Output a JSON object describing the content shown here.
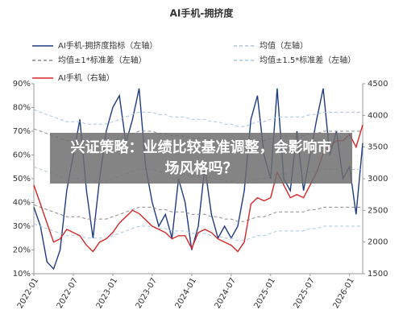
{
  "chart_data": {
    "type": "line",
    "title": "AI手机-拥挤度",
    "x": [
      "2022-01",
      "2022-02",
      "2022-03",
      "2022-04",
      "2022-05",
      "2022-06",
      "2022-07",
      "2022-08",
      "2022-09",
      "2022-10",
      "2022-11",
      "2022-12",
      "2023-01",
      "2023-02",
      "2023-03",
      "2023-04",
      "2023-05",
      "2023-06",
      "2023-07",
      "2023-08",
      "2023-09",
      "2023-10",
      "2023-11",
      "2023-12",
      "2024-01",
      "2024-02",
      "2024-03",
      "2024-04",
      "2024-05",
      "2024-06",
      "2024-07",
      "2024-08",
      "2024-09",
      "2024-10",
      "2024-11",
      "2024-12",
      "2025-01",
      "2025-02",
      "2025-03",
      "2025-04",
      "2025-05",
      "2025-06",
      "2025-07",
      "2025-08",
      "2025-09",
      "2025-10",
      "2025-11",
      "2025-12",
      "2026-01",
      "2026-02",
      "2026-03"
    ],
    "xticks": [
      "2022-01",
      "2022-07",
      "2023-01",
      "2023-07",
      "2024-01",
      "2024-07",
      "2025-01",
      "2025-07",
      "2026-01"
    ],
    "ylim": [
      10,
      90
    ],
    "yticks": [
      {
        "value": 10,
        "label": "10%"
      },
      {
        "value": 20,
        "label": "20%"
      },
      {
        "value": 30,
        "label": "30%"
      },
      {
        "value": 40,
        "label": "40%"
      },
      {
        "value": 50,
        "label": "50%"
      },
      {
        "value": 60,
        "label": "60%"
      },
      {
        "value": 70,
        "label": "70%"
      },
      {
        "value": 80,
        "label": "80%"
      },
      {
        "value": 90,
        "label": "90%"
      }
    ],
    "y2lim": [
      1500,
      4500
    ],
    "y2ticks": [
      1500,
      2000,
      2500,
      3000,
      3500,
      4000,
      4500
    ],
    "series": [
      {
        "name": "AI手机-拥挤度指标（左轴）",
        "color": "#1f3b80",
        "dashed": false,
        "values": [
          38,
          30,
          15,
          12,
          20,
          45,
          60,
          75,
          45,
          25,
          50,
          70,
          80,
          85,
          65,
          75,
          88,
          55,
          40,
          30,
          35,
          25,
          50,
          40,
          20,
          30,
          55,
          35,
          25,
          30,
          25,
          30,
          45,
          75,
          85,
          60,
          50,
          88,
          50,
          45,
          70,
          45,
          60,
          75,
          88,
          60,
          70,
          50,
          55,
          35,
          65
        ]
      },
      {
        "name": "均值（左轴）",
        "color": "#b3c0d8",
        "dashed": true,
        "values": [
          55,
          54,
          53,
          52,
          51,
          50,
          50,
          50,
          49,
          49,
          49,
          49,
          50,
          51,
          52,
          53,
          54,
          54,
          54,
          53,
          53,
          52,
          52,
          52,
          51,
          51,
          51,
          50,
          50,
          49,
          49,
          48,
          48,
          49,
          50,
          50,
          51,
          52,
          52,
          52,
          52,
          52,
          53,
          53,
          54,
          54,
          54,
          54,
          54,
          54,
          54
        ]
      },
      {
        "name": "均值±1*标准差（左轴）",
        "color": "#8c8c8c",
        "dashed": true,
        "values": [
          71,
          70,
          69,
          68,
          67,
          66,
          66,
          66,
          65,
          65,
          65,
          65,
          66,
          67,
          68,
          69,
          70,
          70,
          70,
          69,
          69,
          68,
          68,
          68,
          67,
          67,
          67,
          66,
          66,
          65,
          65,
          64,
          64,
          65,
          66,
          66,
          67,
          68,
          68,
          68,
          68,
          68,
          69,
          69,
          70,
          70,
          70,
          70,
          70,
          70,
          70
        ],
        "lower": [
          39,
          38,
          37,
          36,
          35,
          34,
          34,
          34,
          33,
          33,
          33,
          33,
          34,
          35,
          36,
          37,
          38,
          38,
          38,
          37,
          37,
          36,
          36,
          36,
          35,
          35,
          35,
          34,
          34,
          33,
          33,
          32,
          32,
          33,
          34,
          34,
          35,
          36,
          36,
          36,
          36,
          36,
          37,
          37,
          38,
          38,
          38,
          38,
          38,
          38,
          38
        ]
      },
      {
        "name": "均值±1.5*标准差（左轴）",
        "color": "#a9c3e3",
        "dashed": true,
        "values": [
          79,
          78,
          77,
          76,
          75,
          74,
          74,
          74,
          73,
          73,
          73,
          73,
          74,
          75,
          76,
          77,
          78,
          78,
          78,
          77,
          77,
          76,
          76,
          76,
          75,
          75,
          75,
          74,
          74,
          73,
          73,
          72,
          72,
          73,
          74,
          74,
          75,
          76,
          76,
          76,
          76,
          76,
          77,
          77,
          78,
          78,
          78,
          78,
          78,
          78,
          78
        ],
        "lower": [
          31,
          30,
          29,
          28,
          27,
          26,
          26,
          26,
          25,
          25,
          25,
          25,
          26,
          27,
          28,
          29,
          30,
          30,
          30,
          29,
          29,
          28,
          28,
          28,
          27,
          27,
          27,
          26,
          26,
          25,
          25,
          24,
          24,
          25,
          26,
          26,
          27,
          28,
          28,
          28,
          28,
          28,
          29,
          29,
          30,
          30,
          30,
          30,
          30,
          30,
          30
        ]
      },
      {
        "name": "AI手机（右轴）",
        "color": "#d62728",
        "dashed": false,
        "axis": "y2",
        "values": [
          2900,
          2600,
          2300,
          2000,
          2050,
          2200,
          2150,
          2100,
          1950,
          1850,
          2000,
          2050,
          2150,
          2300,
          2400,
          2500,
          2450,
          2350,
          2250,
          2200,
          2150,
          2050,
          2100,
          2100,
          1900,
          2150,
          2200,
          2150,
          2050,
          2000,
          1950,
          1850,
          2000,
          2600,
          2700,
          2650,
          2700,
          3100,
          2900,
          2700,
          2750,
          2700,
          2900,
          3100,
          3400,
          3500,
          3600,
          3600,
          3700,
          3500,
          3850
        ]
      }
    ]
  },
  "overlay": {
    "headline": "兴证策略：业绩比较基准调整，会影响市场风格吗？"
  }
}
